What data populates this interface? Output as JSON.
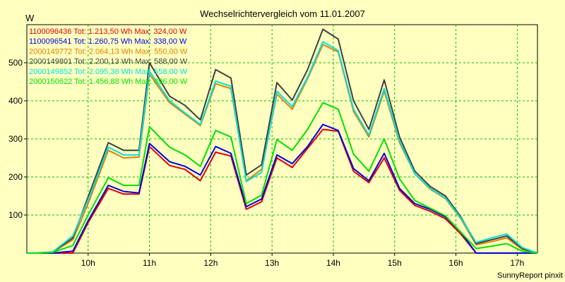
{
  "chart_data": {
    "type": "line",
    "title": "Wechselrichtervergleich vom 11.01.2007",
    "ylabel": "W",
    "footer": "SunnyReport pinxit",
    "ylim": [
      0,
      600
    ],
    "yticks": [
      100,
      200,
      300,
      400,
      500
    ],
    "xlim": [
      9.0,
      17.33
    ],
    "xticks": [
      {
        "v": 10,
        "label": "10h"
      },
      {
        "v": 11,
        "label": "11h"
      },
      {
        "v": 12,
        "label": "12h"
      },
      {
        "v": 13,
        "label": "13h"
      },
      {
        "v": 14,
        "label": "14h"
      },
      {
        "v": 15,
        "label": "15h"
      },
      {
        "v": 16,
        "label": "16h"
      },
      {
        "v": 17,
        "label": "17h"
      }
    ],
    "grid": true,
    "legend_position": "top-left",
    "x": [
      9.0,
      9.17,
      9.42,
      9.75,
      10.0,
      10.33,
      10.58,
      10.83,
      11.0,
      11.33,
      11.58,
      11.83,
      12.08,
      12.33,
      12.58,
      12.83,
      13.08,
      13.33,
      13.58,
      13.83,
      14.08,
      14.33,
      14.58,
      14.83,
      15.08,
      15.33,
      15.58,
      15.83,
      16.08,
      16.33,
      16.58,
      16.83,
      17.08,
      17.33
    ],
    "series": [
      {
        "name": "1100096436",
        "legend": "1100096436 Tot: 1.213,50 Wh Max: 324,00 W",
        "color": "#e00000",
        "values": [
          0,
          0,
          0,
          0,
          80,
          170,
          155,
          155,
          280,
          230,
          220,
          190,
          265,
          255,
          115,
          135,
          250,
          225,
          275,
          325,
          320,
          215,
          185,
          250,
          165,
          125,
          110,
          90,
          50,
          0,
          0,
          0,
          0,
          0
        ]
      },
      {
        "name": "1100096541",
        "legend": "1100096541 Tot: 1.260,75 Wh Max: 338,00 W",
        "color": "#0000e0",
        "values": [
          0,
          0,
          0,
          5,
          85,
          178,
          162,
          158,
          288,
          240,
          228,
          205,
          280,
          262,
          122,
          142,
          258,
          235,
          280,
          338,
          322,
          222,
          190,
          262,
          170,
          130,
          115,
          95,
          55,
          0,
          0,
          0,
          0,
          0
        ]
      },
      {
        "name": "2000149772",
        "legend": "2000149772 Tot: 2.064,13 Wh Max: 550,00 W",
        "color": "#e08000",
        "values": [
          0,
          0,
          2,
          35,
          130,
          270,
          250,
          252,
          470,
          395,
          365,
          335,
          445,
          432,
          190,
          220,
          418,
          378,
          458,
          548,
          528,
          372,
          305,
          425,
          290,
          208,
          168,
          143,
          90,
          22,
          30,
          40,
          10,
          0
        ]
      },
      {
        "name": "2000149801",
        "legend": "2000149801 Tot: 2.200,13 Wh Max: 588,00 W",
        "color": "#404040",
        "values": [
          0,
          0,
          3,
          40,
          148,
          290,
          270,
          270,
          500,
          412,
          388,
          350,
          482,
          460,
          205,
          232,
          448,
          402,
          482,
          588,
          562,
          400,
          325,
          455,
          305,
          215,
          175,
          150,
          95,
          25,
          35,
          45,
          12,
          0
        ]
      },
      {
        "name": "2000149852",
        "legend": "2000149852 Tot: 2.095,38 Wh Max: 558,00 W",
        "color": "#00e0e0",
        "values": [
          0,
          0,
          3,
          45,
          140,
          278,
          258,
          258,
          478,
          400,
          368,
          338,
          452,
          438,
          188,
          212,
          425,
          385,
          462,
          555,
          532,
          378,
          310,
          432,
          295,
          208,
          170,
          145,
          92,
          28,
          40,
          50,
          15,
          0
        ]
      },
      {
        "name": "2000150622",
        "legend": "2000150622 Tot: 1.456,88 Wh Max: 396,00 W",
        "color": "#00e000",
        "values": [
          0,
          0,
          2,
          20,
          100,
          198,
          178,
          178,
          332,
          278,
          258,
          228,
          322,
          305,
          130,
          152,
          298,
          270,
          325,
          395,
          378,
          260,
          215,
          300,
          195,
          138,
          118,
          98,
          55,
          12,
          18,
          25,
          5,
          0
        ]
      }
    ]
  }
}
